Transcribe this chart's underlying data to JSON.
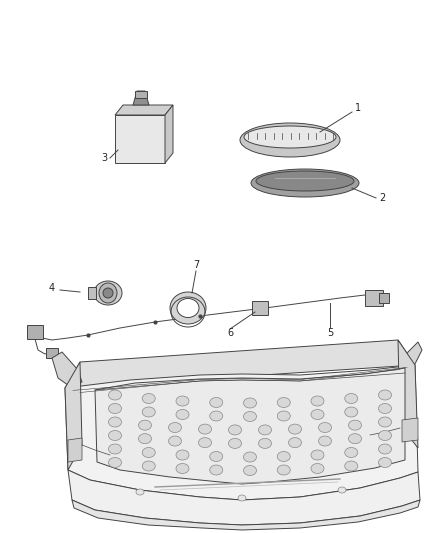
{
  "background_color": "#ffffff",
  "fig_width": 4.38,
  "fig_height": 5.33,
  "dpi": 100,
  "line_color": "#444444",
  "dark_color": "#222222",
  "mid_color": "#888888",
  "light_color": "#cccccc",
  "very_light": "#eeeeee"
}
